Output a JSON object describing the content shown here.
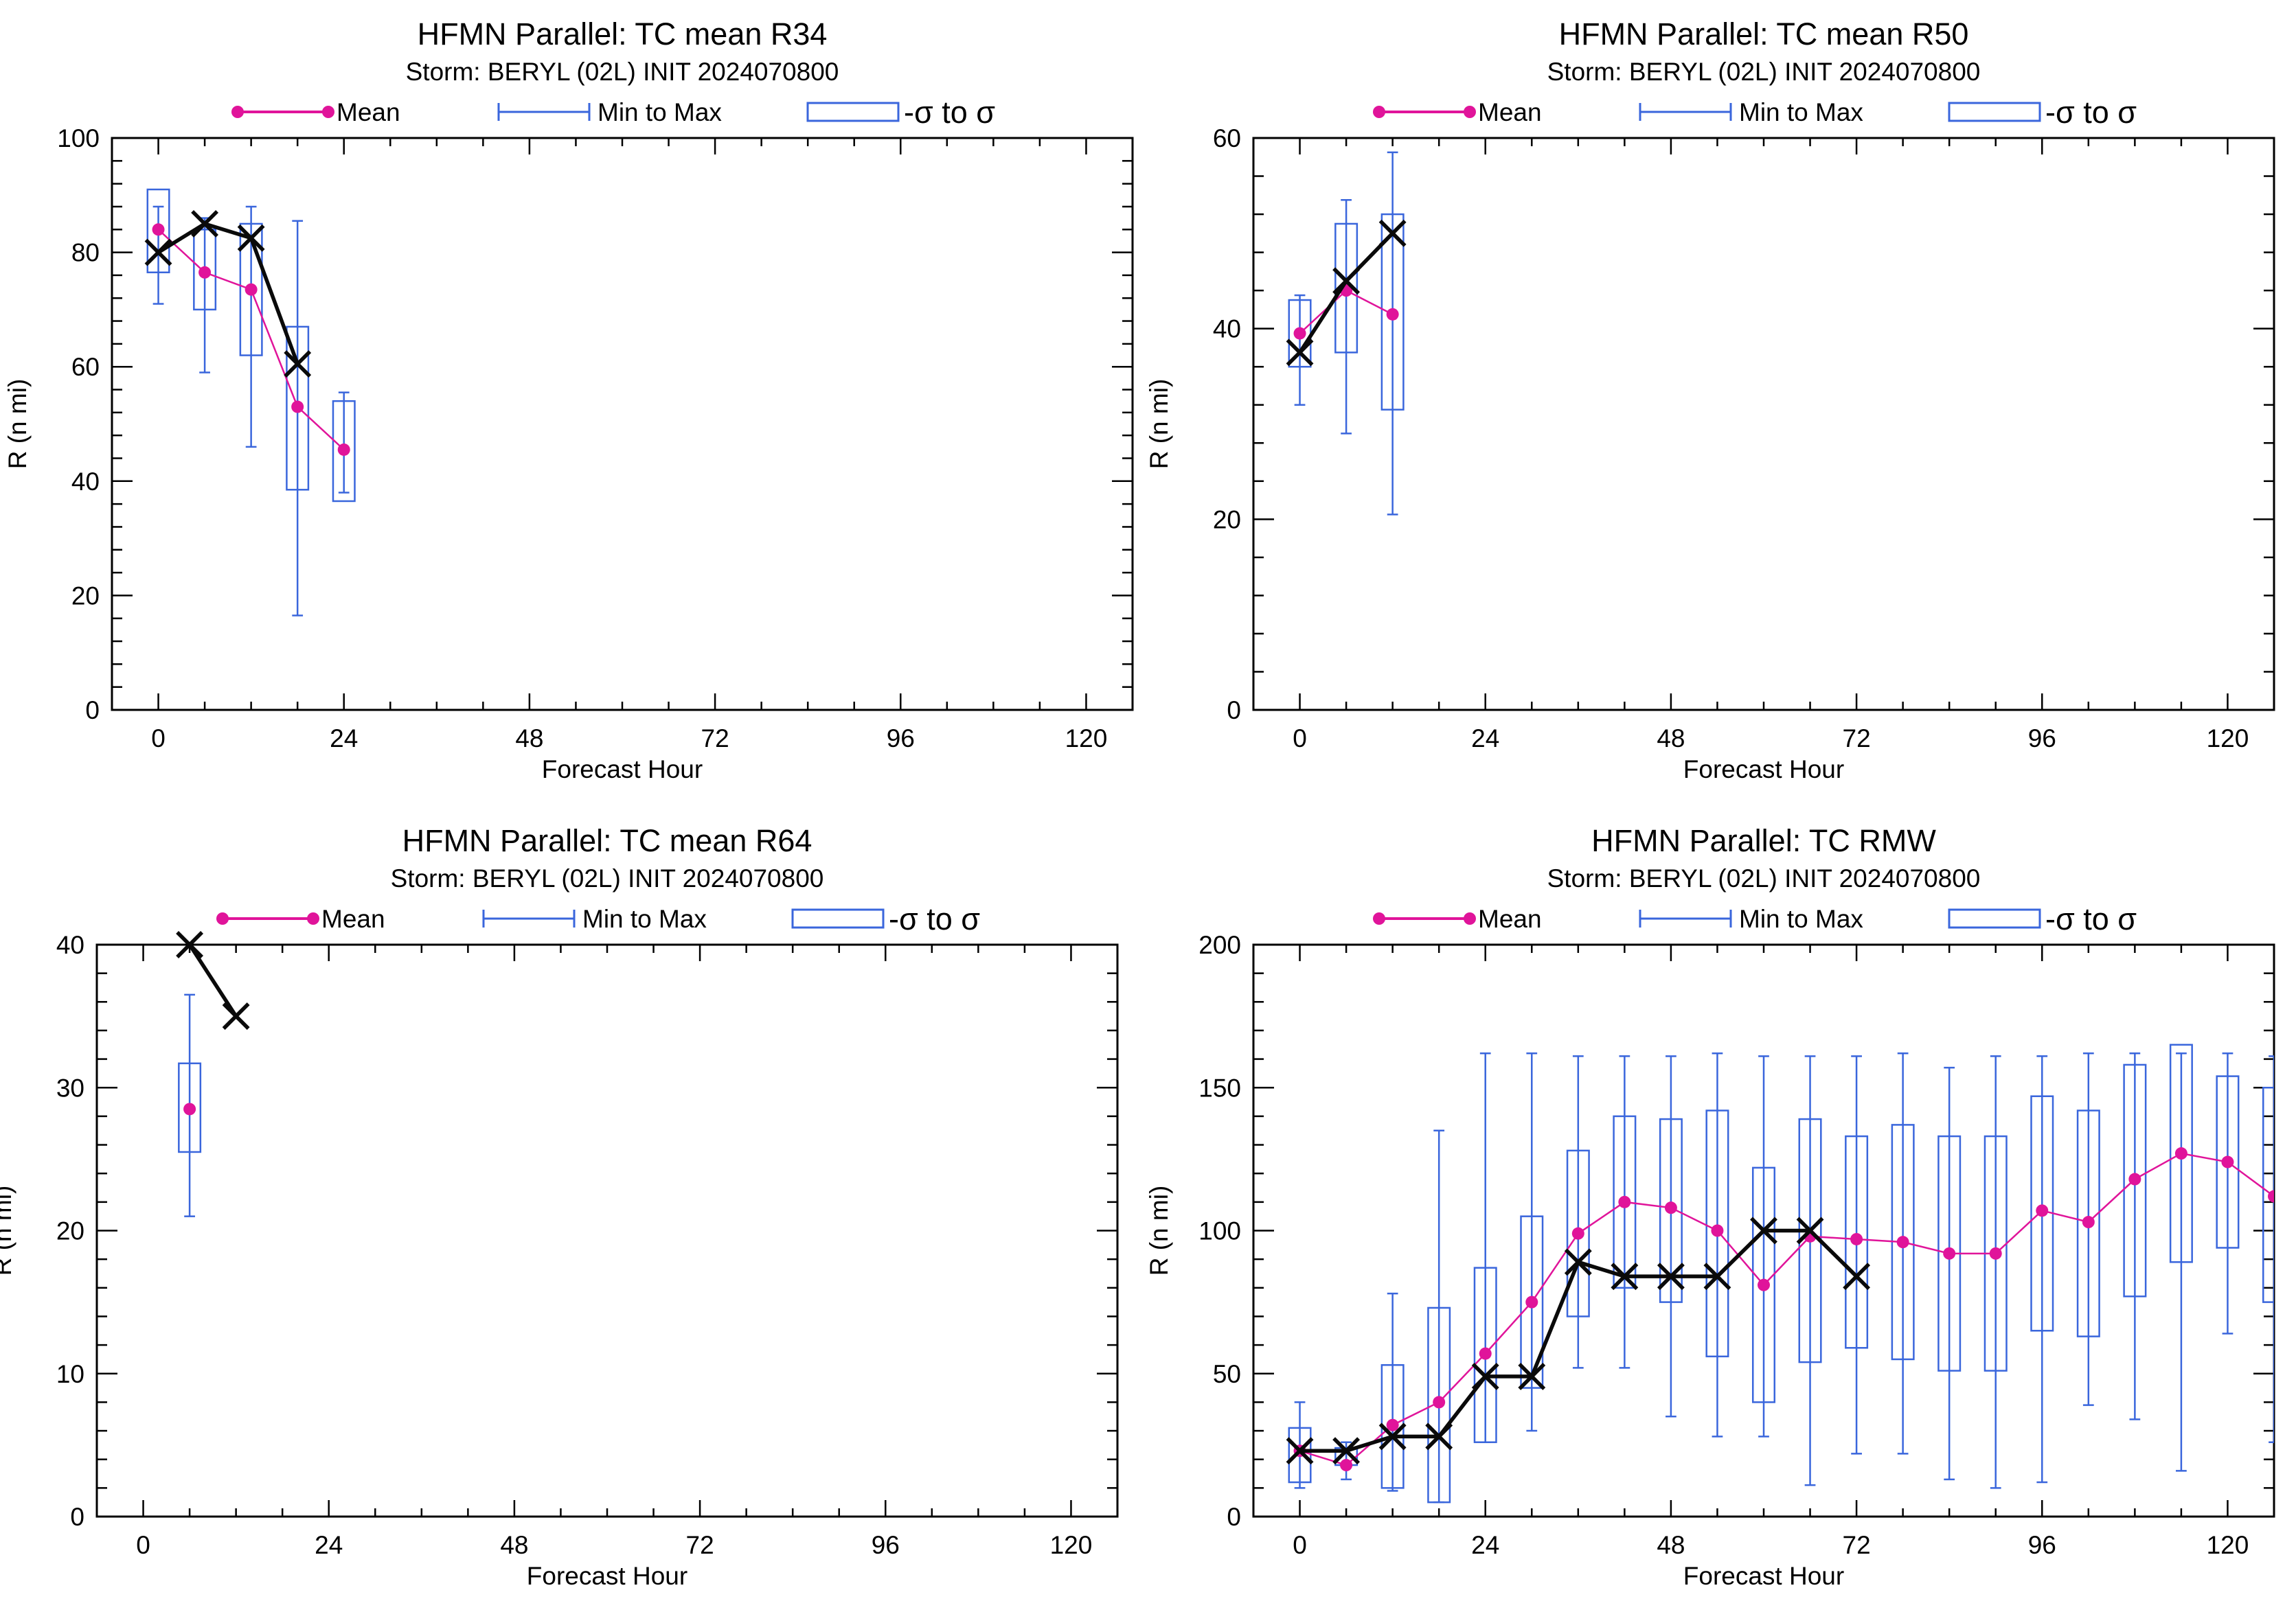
{
  "legend": {
    "mean_label": "Mean",
    "minmax_label": "Min to Max",
    "sigma_label": "-σ to σ",
    "mean_color": "#e0149a",
    "minmax_color": "#3a66dc",
    "box_color": "#3a66dc",
    "obs_color": "#0a0a0a"
  },
  "chart_data": [
    {
      "type": "box-line",
      "title": "HFMN Parallel: TC mean R34",
      "subtitle": "Storm: BERYL (02L) INIT 2024070800",
      "xlabel": "Forecast Hour",
      "ylabel": "R (n mi)",
      "xlim": [
        -6,
        126
      ],
      "ylim": [
        0,
        100
      ],
      "xticks": [
        0,
        24,
        48,
        72,
        96,
        120
      ],
      "yticks": [
        0,
        20,
        40,
        60,
        80,
        100
      ],
      "mean": {
        "x": [
          0,
          6,
          12,
          18,
          24
        ],
        "y": [
          84,
          76.5,
          73.5,
          53,
          45.5
        ]
      },
      "range": [
        {
          "x": 0,
          "min": 71,
          "max": 88
        },
        {
          "x": 6,
          "min": 59,
          "max": 86
        },
        {
          "x": 12,
          "min": 46,
          "max": 88
        },
        {
          "x": 18,
          "min": 16.5,
          "max": 85.5
        },
        {
          "x": 24,
          "min": 38,
          "max": 55.5
        }
      ],
      "sigma": [
        {
          "x": 0,
          "low": 76.5,
          "high": 91
        },
        {
          "x": 6,
          "low": 70,
          "high": 84
        },
        {
          "x": 12,
          "low": 62,
          "high": 85
        },
        {
          "x": 18,
          "low": 38.5,
          "high": 67
        },
        {
          "x": 24,
          "low": 36.5,
          "high": 54
        }
      ],
      "observed": {
        "x": [
          0,
          6,
          12,
          18
        ],
        "y": [
          80,
          85,
          82.5,
          60.5
        ]
      }
    },
    {
      "type": "box-line",
      "title": "HFMN Parallel: TC mean R50",
      "subtitle": "Storm: BERYL (02L) INIT 2024070800",
      "xlabel": "Forecast Hour",
      "ylabel": "R (n mi)",
      "xlim": [
        -6,
        126
      ],
      "ylim": [
        0,
        60
      ],
      "xticks": [
        0,
        24,
        48,
        72,
        96,
        120
      ],
      "yticks": [
        0,
        20,
        40,
        60
      ],
      "mean": {
        "x": [
          0,
          6,
          12
        ],
        "y": [
          39.5,
          44,
          41.5
        ]
      },
      "range": [
        {
          "x": 0,
          "min": 32,
          "max": 43.5
        },
        {
          "x": 6,
          "min": 29,
          "max": 53.5
        },
        {
          "x": 12,
          "min": 20.5,
          "max": 58.5
        }
      ],
      "sigma": [
        {
          "x": 0,
          "low": 36,
          "high": 43
        },
        {
          "x": 6,
          "low": 37.5,
          "high": 51
        },
        {
          "x": 12,
          "low": 31.5,
          "high": 52
        }
      ],
      "observed": {
        "x": [
          0,
          6,
          12
        ],
        "y": [
          37.5,
          45,
          50
        ]
      }
    },
    {
      "type": "box-line",
      "title": "HFMN Parallel: TC mean R64",
      "subtitle": "Storm: BERYL (02L) INIT 2024070800",
      "xlabel": "Forecast Hour",
      "ylabel": "R (n mi)",
      "xlim": [
        -6,
        126
      ],
      "ylim": [
        0,
        40
      ],
      "xticks": [
        0,
        24,
        48,
        72,
        96,
        120
      ],
      "yticks": [
        0,
        10,
        20,
        30,
        40
      ],
      "mean": {
        "x": [
          6
        ],
        "y": [
          28.5
        ]
      },
      "range": [
        {
          "x": 6,
          "min": 21,
          "max": 36.5
        }
      ],
      "sigma": [
        {
          "x": 6,
          "low": 25.5,
          "high": 31.7
        }
      ],
      "observed": {
        "x": [
          6,
          12
        ],
        "y": [
          40,
          35
        ]
      }
    },
    {
      "type": "box-line",
      "title": "HFMN Parallel: TC RMW",
      "subtitle": "Storm: BERYL (02L) INIT 2024070800",
      "xlabel": "Forecast Hour",
      "ylabel": "R (n mi)",
      "xlim": [
        -6,
        126
      ],
      "ylim": [
        0,
        200
      ],
      "xticks": [
        0,
        24,
        48,
        72,
        96,
        120
      ],
      "yticks": [
        0,
        50,
        100,
        150,
        200
      ],
      "mean": {
        "x": [
          0,
          6,
          12,
          18,
          24,
          30,
          36,
          42,
          48,
          54,
          60,
          66,
          72,
          78,
          84,
          90,
          96,
          102,
          108,
          114,
          120,
          126
        ],
        "y": [
          23,
          18,
          32,
          40,
          57,
          75,
          99,
          110,
          108,
          100,
          81,
          98,
          97,
          96,
          92,
          92,
          107,
          103,
          118,
          127,
          124,
          112
        ]
      },
      "range": [
        {
          "x": 0,
          "min": 10,
          "max": 40
        },
        {
          "x": 6,
          "min": 13,
          "max": 26
        },
        {
          "x": 12,
          "min": 9,
          "max": 78
        },
        {
          "x": 18,
          "min": 5,
          "max": 135
        },
        {
          "x": 24,
          "min": 26,
          "max": 162
        },
        {
          "x": 30,
          "min": 30,
          "max": 162
        },
        {
          "x": 36,
          "min": 52,
          "max": 161
        },
        {
          "x": 42,
          "min": 52,
          "max": 161
        },
        {
          "x": 48,
          "min": 35,
          "max": 161
        },
        {
          "x": 54,
          "min": 28,
          "max": 162
        },
        {
          "x": 60,
          "min": 28,
          "max": 161
        },
        {
          "x": 66,
          "min": 11,
          "max": 161
        },
        {
          "x": 72,
          "min": 22,
          "max": 161
        },
        {
          "x": 78,
          "min": 22,
          "max": 162
        },
        {
          "x": 84,
          "min": 13,
          "max": 157
        },
        {
          "x": 90,
          "min": 10,
          "max": 161
        },
        {
          "x": 96,
          "min": 12,
          "max": 161
        },
        {
          "x": 102,
          "min": 39,
          "max": 162
        },
        {
          "x": 108,
          "min": 34,
          "max": 162
        },
        {
          "x": 114,
          "min": 16,
          "max": 162
        },
        {
          "x": 120,
          "min": 64,
          "max": 162
        },
        {
          "x": 126,
          "min": 26,
          "max": 161
        }
      ],
      "sigma": [
        {
          "x": 0,
          "low": 12,
          "high": 31
        },
        {
          "x": 6,
          "low": 18,
          "high": 24
        },
        {
          "x": 12,
          "low": 10,
          "high": 53
        },
        {
          "x": 18,
          "low": 5,
          "high": 73
        },
        {
          "x": 24,
          "low": 26,
          "high": 87
        },
        {
          "x": 30,
          "low": 45,
          "high": 105
        },
        {
          "x": 36,
          "low": 70,
          "high": 128
        },
        {
          "x": 42,
          "low": 80,
          "high": 140
        },
        {
          "x": 48,
          "low": 75,
          "high": 139
        },
        {
          "x": 54,
          "low": 56,
          "high": 142
        },
        {
          "x": 60,
          "low": 40,
          "high": 122
        },
        {
          "x": 66,
          "low": 54,
          "high": 139
        },
        {
          "x": 72,
          "low": 59,
          "high": 133
        },
        {
          "x": 78,
          "low": 55,
          "high": 137
        },
        {
          "x": 84,
          "low": 51,
          "high": 133
        },
        {
          "x": 90,
          "low": 51,
          "high": 133
        },
        {
          "x": 96,
          "low": 65,
          "high": 147
        },
        {
          "x": 102,
          "low": 63,
          "high": 142
        },
        {
          "x": 108,
          "low": 77,
          "high": 158
        },
        {
          "x": 114,
          "low": 89,
          "high": 165
        },
        {
          "x": 120,
          "low": 94,
          "high": 154
        },
        {
          "x": 126,
          "low": 75,
          "high": 150
        }
      ],
      "observed": {
        "x": [
          0,
          6,
          12,
          18,
          24,
          30,
          36,
          42,
          48,
          54,
          60,
          66,
          72
        ],
        "y": [
          23,
          23,
          28,
          28,
          49,
          49,
          89,
          84,
          84,
          84,
          100,
          100,
          84
        ]
      }
    }
  ]
}
